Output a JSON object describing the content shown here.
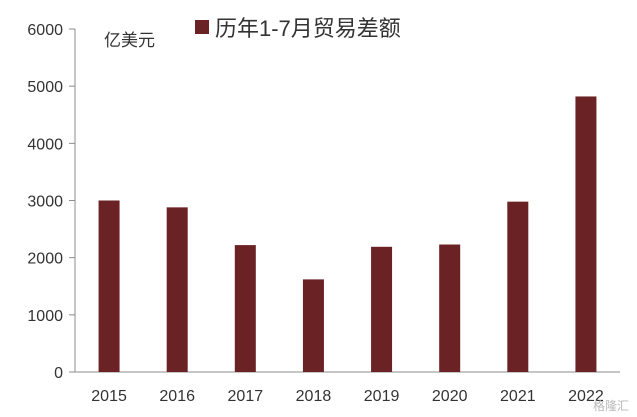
{
  "chart_data": {
    "type": "bar",
    "categories": [
      "2015",
      "2016",
      "2017",
      "2018",
      "2019",
      "2020",
      "2021",
      "2022"
    ],
    "series": [
      {
        "name": "历年1-7月贸易差额",
        "values": [
          3000,
          2880,
          2220,
          1620,
          2190,
          2230,
          2980,
          4820
        ]
      }
    ],
    "unit": "亿美元",
    "ylim": [
      0,
      6000
    ],
    "yticks": [
      0,
      1000,
      2000,
      3000,
      4000,
      5000,
      6000
    ],
    "grid": false,
    "legend_position": "top",
    "bar_color": "#6b2224"
  },
  "watermark": "格隆汇"
}
